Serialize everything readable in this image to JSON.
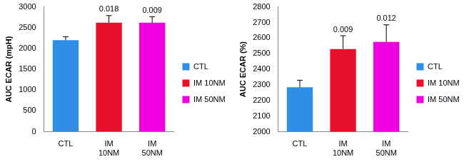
{
  "chart_data": [
    {
      "type": "bar",
      "y_label": "AUC ECAR (mpH)",
      "categories": [
        "CTL",
        "IM 10NM",
        "IM 50NM"
      ],
      "values": [
        2200,
        2620,
        2620
      ],
      "errors": [
        80,
        170,
        140
      ],
      "annotations": [
        null,
        "0.018",
        "0.009"
      ],
      "colors": [
        "#2f8fe6",
        "#e8102a",
        "#f000e0"
      ],
      "ylim": [
        0,
        3000
      ],
      "yticks": [
        0,
        500,
        1000,
        1500,
        2000,
        2500,
        3000
      ],
      "grid": false,
      "legend": "right"
    },
    {
      "type": "bar",
      "y_label": "AUC ECAR (%)",
      "categories": [
        "CTL",
        "IM 10NM",
        "IM 50NM"
      ],
      "values": [
        2285,
        2530,
        2575
      ],
      "errors": [
        45,
        85,
        110
      ],
      "annotations": [
        null,
        "0.009",
        "0.012"
      ],
      "colors": [
        "#2f8fe6",
        "#e8102a",
        "#f000e0"
      ],
      "ylim": [
        2000,
        2800
      ],
      "yticks": [
        2000,
        2100,
        2200,
        2300,
        2400,
        2500,
        2600,
        2700,
        2800
      ],
      "grid": false,
      "legend": "right"
    }
  ]
}
